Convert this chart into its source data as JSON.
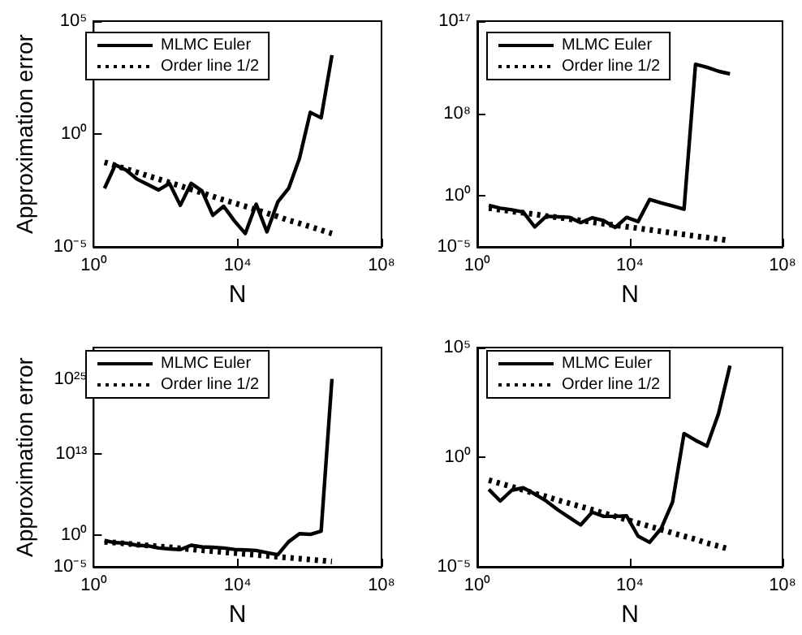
{
  "chart_data": [
    {
      "type": "line",
      "xlabel": "N",
      "ylabel": "Approximation error",
      "log": "xy",
      "legend": "top left",
      "marker": "none",
      "xlim": [
        1,
        100000000
      ],
      "xticks": [
        {
          "value": 1,
          "label": "10⁰"
        },
        {
          "value": 10000,
          "label": "10⁴"
        },
        {
          "value": 100000000,
          "label": "10⁸"
        }
      ],
      "ylim": [
        1e-05,
        100000
      ],
      "yticks": [
        {
          "value": 1e-05,
          "label": "10⁻⁵"
        },
        {
          "value": 1,
          "label": "10⁰"
        },
        {
          "value": 100000,
          "label": "10⁵"
        }
      ],
      "x": [
        2,
        4,
        8,
        16,
        32,
        64,
        128,
        256,
        512,
        1024,
        2048,
        4096,
        8192,
        16384,
        32768,
        65536,
        131072,
        262144,
        524288,
        1048576,
        2097152,
        4194304
      ],
      "series": [
        {
          "name": "MLMC Euler",
          "color": "#000000",
          "line_style": "solid",
          "values": [
            0.0039,
            0.043,
            0.025,
            0.01,
            0.0058,
            0.0033,
            0.0065,
            0.00069,
            0.0065,
            0.003,
            0.00025,
            0.00063,
            0.00014,
            3.9e-05,
            0.00078,
            4.6e-05,
            0.00098,
            0.0039,
            0.083,
            9.1,
            5.2,
            3100
          ]
        },
        {
          "name": "Order line 1/2",
          "color": "#000000",
          "line_style": "dotted",
          "values": [
            0.056,
            0.04,
            0.028,
            0.02,
            0.014,
            0.01,
            0.0071,
            0.005,
            0.0035,
            0.0025,
            0.0017,
            0.0012,
            0.00087,
            0.00062,
            0.00044,
            0.00031,
            0.00022,
            0.00015,
            0.00011,
            7.8e-05,
            5.5e-05,
            3.9e-05
          ]
        }
      ]
    },
    {
      "type": "line",
      "xlabel": "N",
      "log": "xy",
      "legend": "top left",
      "marker": "none",
      "xlim": [
        1,
        100000000
      ],
      "xticks": [
        {
          "value": 1,
          "label": "10⁰"
        },
        {
          "value": 10000,
          "label": "10⁴"
        },
        {
          "value": 100000000,
          "label": "10⁸"
        }
      ],
      "ylim": [
        1e-05,
        100000000000000000
      ],
      "yticks": [
        {
          "value": 1e-05,
          "label": "10⁻⁵"
        },
        {
          "value": 1,
          "label": "10⁰"
        },
        {
          "value": 100000000,
          "label": "10⁸"
        },
        {
          "value": 100000000000000000,
          "label": "10¹⁷"
        }
      ],
      "x": [
        2,
        4,
        8,
        16,
        32,
        64,
        128,
        256,
        512,
        1024,
        2048,
        4096,
        8192,
        16384,
        32768,
        65536,
        131072,
        262144,
        524288,
        1048576,
        2097152,
        4194304
      ],
      "series": [
        {
          "name": "MLMC Euler",
          "color": "#000000",
          "line_style": "solid",
          "values": [
            0.11,
            0.059,
            0.041,
            0.025,
            0.00087,
            0.0095,
            0.0085,
            0.0076,
            0.0023,
            0.0068,
            0.0037,
            0.00076,
            0.0076,
            0.0029,
            0.41,
            0.19,
            0.095,
            0.046,
            6300000000000,
            3200000000000,
            1300000000000,
            720000000000
          ]
        },
        {
          "name": "Order line 1/2",
          "color": "#000000",
          "line_style": "dotted",
          "values": [
            0.059,
            0.042,
            0.029,
            0.021,
            0.015,
            0.01,
            0.0074,
            0.0052,
            0.0037,
            0.0026,
            0.0018,
            0.0013,
            0.00091,
            0.00065,
            0.00046,
            0.00032,
            0.00023,
            0.00016,
            0.00011,
            8.1e-05,
            5.7e-05,
            4.1e-05
          ]
        }
      ]
    },
    {
      "type": "line",
      "xlabel": "N",
      "ylabel": "Approximation error",
      "log": "xy",
      "legend": "top left",
      "marker": "none",
      "xlim": [
        1,
        100000000
      ],
      "xticks": [
        {
          "value": 1,
          "label": "10⁰"
        },
        {
          "value": 10000,
          "label": "10⁴"
        },
        {
          "value": 100000000,
          "label": "10⁸"
        }
      ],
      "ylim": [
        1e-05,
        1e+30
      ],
      "yticks": [
        {
          "value": 1e-05,
          "label": "10⁻⁵"
        },
        {
          "value": 1,
          "label": "10⁰"
        },
        {
          "value": 10000000000000,
          "label": "10¹³"
        },
        {
          "value": 1e+25,
          "label": "10²⁵"
        }
      ],
      "x": [
        2,
        4,
        8,
        16,
        32,
        64,
        128,
        256,
        512,
        1024,
        2048,
        4096,
        8192,
        16384,
        32768,
        65536,
        131072,
        262144,
        524288,
        1048576,
        2097152,
        4194304
      ],
      "series": [
        {
          "name": "MLMC Euler",
          "color": "#000000",
          "line_style": "solid",
          "values": [
            0.15,
            0.071,
            0.059,
            0.027,
            0.022,
            0.01,
            0.0071,
            0.0058,
            0.027,
            0.015,
            0.013,
            0.01,
            0.0058,
            0.0048,
            0.004,
            0.0018,
            0.00083,
            0.1,
            1.9,
            1.5,
            4.9,
            1e+25
          ]
        },
        {
          "name": "Order line 1/2",
          "color": "#000000",
          "line_style": "dotted",
          "values": [
            0.1,
            0.071,
            0.05,
            0.035,
            0.025,
            0.018,
            0.013,
            0.0088,
            0.0063,
            0.0044,
            0.0031,
            0.0022,
            0.0016,
            0.0011,
            0.00078,
            0.00055,
            0.00039,
            0.00028,
            0.0002,
            0.00014,
            0.0001,
            7.1e-05
          ]
        }
      ]
    },
    {
      "type": "line",
      "xlabel": "N",
      "log": "xy",
      "legend": "top left",
      "marker": "none",
      "xlim": [
        1,
        100000000
      ],
      "xticks": [
        {
          "value": 1,
          "label": "10⁰"
        },
        {
          "value": 10000,
          "label": "10⁴"
        },
        {
          "value": 100000000,
          "label": "10⁸"
        }
      ],
      "ylim": [
        1e-05,
        100000
      ],
      "yticks": [
        {
          "value": 1e-05,
          "label": "10⁻⁵"
        },
        {
          "value": 1,
          "label": "10⁰"
        },
        {
          "value": 100000,
          "label": "10⁵"
        }
      ],
      "x": [
        2,
        4,
        8,
        16,
        32,
        64,
        128,
        256,
        512,
        1024,
        2048,
        4096,
        8192,
        16384,
        32768,
        65536,
        131072,
        262144,
        524288,
        1048576,
        2097152,
        4194304
      ],
      "series": [
        {
          "name": "MLMC Euler",
          "color": "#000000",
          "line_style": "solid",
          "values": [
            0.034,
            0.01,
            0.031,
            0.04,
            0.021,
            0.01,
            0.004,
            0.0018,
            0.00081,
            0.0031,
            0.002,
            0.002,
            0.0021,
            0.00025,
            0.00013,
            0.00055,
            0.0089,
            12,
            5.9,
            3.2,
            95,
            15000
          ]
        },
        {
          "name": "Order line 1/2",
          "color": "#000000",
          "line_style": "dotted",
          "values": [
            0.089,
            0.063,
            0.045,
            0.032,
            0.022,
            0.016,
            0.011,
            0.0079,
            0.0056,
            0.004,
            0.0028,
            0.002,
            0.0014,
            0.00099,
            0.0007,
            0.0005,
            0.00035,
            0.00025,
            0.00018,
            0.00012,
            8.8e-05,
            6.2e-05
          ]
        }
      ]
    }
  ]
}
